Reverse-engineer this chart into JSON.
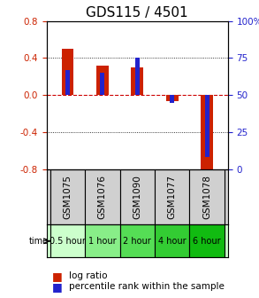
{
  "title": "GDS115 / 4501",
  "samples": [
    "GSM1075",
    "GSM1076",
    "GSM1090",
    "GSM1077",
    "GSM1078"
  ],
  "time_labels": [
    "0.5 hour",
    "1 hour",
    "2 hour",
    "4 hour",
    "6 hour"
  ],
  "time_colors": [
    "#ccffcc",
    "#88ee88",
    "#55dd55",
    "#33cc33",
    "#11bb11"
  ],
  "log_ratios": [
    0.5,
    0.32,
    0.3,
    -0.07,
    -0.82
  ],
  "percentile_ranks": [
    67,
    65,
    75,
    45,
    8
  ],
  "bar_color": "#cc2200",
  "percentile_color": "#2222cc",
  "ylim": [
    -0.8,
    0.8
  ],
  "yticks": [
    -0.8,
    -0.4,
    0.0,
    0.4,
    0.8
  ],
  "y2ticks": [
    0,
    25,
    50,
    75,
    100
  ],
  "bar_width": 0.35,
  "percentile_bar_width": 0.12,
  "background_color": "#ffffff",
  "plot_bg": "#ffffff",
  "zero_line_color": "#cc0000",
  "title_fontsize": 11,
  "tick_fontsize": 7.5,
  "legend_fontsize": 7.5,
  "sample_label_fontsize": 7.5,
  "time_label_fontsize": 7,
  "ylabel_color_left": "#cc2200",
  "ylabel_color_right": "#2222cc"
}
